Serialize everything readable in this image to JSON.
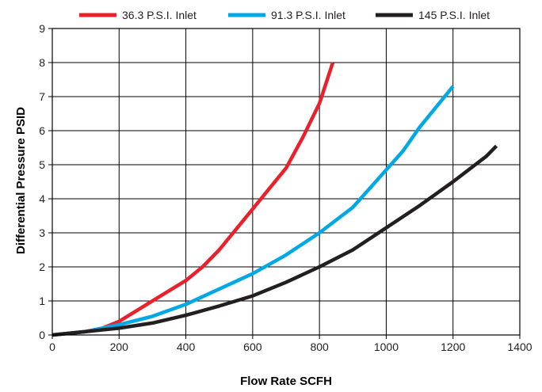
{
  "chart_data": {
    "type": "line",
    "xlabel": "Flow Rate SCFH",
    "ylabel": "Differential Pressure PSID",
    "xlim": [
      0,
      1400
    ],
    "ylim": [
      0,
      9
    ],
    "xticks": [
      "0",
      "200",
      "400",
      "600",
      "800",
      "1000",
      "1200",
      "1400"
    ],
    "yticks": [
      "0",
      "1",
      "2",
      "3",
      "4",
      "5",
      "6",
      "7",
      "8",
      "9"
    ],
    "grid": true,
    "legend_position": "top",
    "series": [
      {
        "name": "36.3 P.S.I. Inlet",
        "color": "#e8212b",
        "x": [
          0,
          100,
          150,
          200,
          250,
          300,
          350,
          400,
          450,
          500,
          550,
          600,
          650,
          700,
          750,
          800,
          840
        ],
        "y": [
          0,
          0.1,
          0.2,
          0.4,
          0.7,
          1.0,
          1.3,
          1.6,
          2.0,
          2.5,
          3.1,
          3.7,
          4.3,
          4.9,
          5.8,
          6.8,
          8.0
        ]
      },
      {
        "name": "91.3 P.S.I. Inlet",
        "color": "#00a9e6",
        "x": [
          0,
          100,
          200,
          300,
          400,
          500,
          600,
          700,
          800,
          900,
          1000,
          1050,
          1100,
          1150,
          1200
        ],
        "y": [
          0,
          0.1,
          0.3,
          0.55,
          0.9,
          1.35,
          1.8,
          2.35,
          3.0,
          3.75,
          4.85,
          5.4,
          6.1,
          6.7,
          7.3
        ]
      },
      {
        "name": "145 P.S.I. Inlet",
        "color": "#231f20",
        "x": [
          0,
          100,
          200,
          300,
          400,
          500,
          600,
          700,
          800,
          900,
          1000,
          1100,
          1200,
          1300,
          1330
        ],
        "y": [
          0,
          0.1,
          0.2,
          0.35,
          0.58,
          0.85,
          1.15,
          1.55,
          2.0,
          2.5,
          3.15,
          3.8,
          4.5,
          5.25,
          5.55
        ]
      }
    ]
  }
}
